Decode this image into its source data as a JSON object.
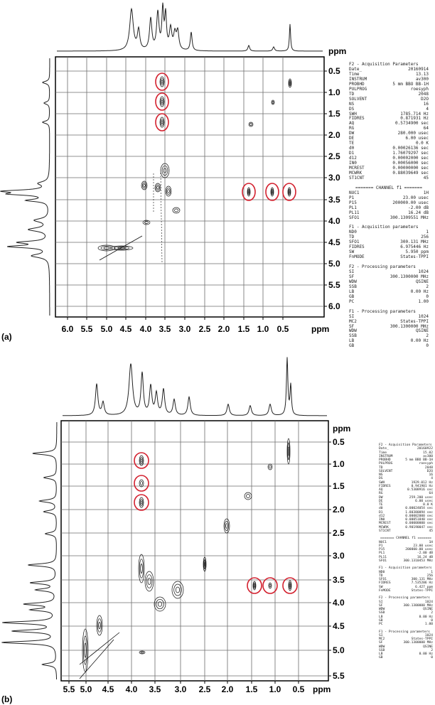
{
  "panels": [
    {
      "label": "(a)",
      "xaxis": {
        "ticks": [
          "6.0",
          "5.5",
          "5.0",
          "4.5",
          "4.0",
          "3.5",
          "3.0",
          "2.5",
          "2.0",
          "1.5",
          "1.0",
          "0.5"
        ],
        "unit": "ppm"
      },
      "yaxis": {
        "ticks": [
          "0.5",
          "1.0",
          "1.5",
          "2.0",
          "2.5",
          "3.0",
          "3.5",
          "4.0",
          "4.5",
          "5.0",
          "5.5",
          "6.0"
        ],
        "unit": "ppm"
      },
      "params": [
        {
          "t": "h",
          "text": "F2 - Acquisition Parameters"
        },
        {
          "k": "Date_",
          "v": "20160914"
        },
        {
          "k": "Time",
          "v": "13.13"
        },
        {
          "k": "INSTRUM",
          "v": "av300"
        },
        {
          "k": "PROBHD",
          "v": "5 mm BBO BB-1H"
        },
        {
          "k": "PULPROG",
          "v": "roesyph"
        },
        {
          "k": "TD",
          "v": "2048"
        },
        {
          "k": "SOLVENT",
          "v": "D2O"
        },
        {
          "k": "NS",
          "v": "16"
        },
        {
          "k": "DS",
          "v": "4"
        },
        {
          "k": "SWH",
          "v": "1785.714 Hz"
        },
        {
          "k": "FIDRES",
          "v": "0.871931 Hz"
        },
        {
          "k": "AQ",
          "v": "0.5734900 sec"
        },
        {
          "k": "RG",
          "v": "64"
        },
        {
          "k": "DW",
          "v": "280.000 usec"
        },
        {
          "k": "DE",
          "v": "6.00 usec"
        },
        {
          "k": "TE",
          "v": "0.0 K"
        },
        {
          "k": "d0",
          "v": "0.00026136 sec"
        },
        {
          "k": "D1",
          "v": "1.76079297 sec"
        },
        {
          "k": "d12",
          "v": "0.00002000 sec"
        },
        {
          "k": "IN0",
          "v": "0.00056000 sec"
        },
        {
          "k": "MCREST",
          "v": "0.00000000 sec"
        },
        {
          "k": "MCWRK",
          "v": "0.88039649 sec"
        },
        {
          "k": "ST1CNT",
          "v": "45"
        },
        {
          "t": "s"
        },
        {
          "t": "c",
          "text": "======= CHANNEL f1 ======="
        },
        {
          "k": "NUC1",
          "v": "1H"
        },
        {
          "k": "P1",
          "v": "23.00 usec"
        },
        {
          "k": "P15",
          "v": "200000.00 usec"
        },
        {
          "k": "PL1",
          "v": "-2.00 dB"
        },
        {
          "k": "PL11",
          "v": "16.24 dB"
        },
        {
          "k": "SFO1",
          "v": "300.1309551 MHz"
        },
        {
          "t": "s"
        },
        {
          "t": "h",
          "text": "F1 - Acquisition parameters"
        },
        {
          "k": "ND0",
          "v": "1"
        },
        {
          "k": "TD",
          "v": "256"
        },
        {
          "k": "SFO1",
          "v": "300.131 MHz"
        },
        {
          "k": "FIDRES",
          "v": "6.975446 Hz"
        },
        {
          "k": "SW",
          "v": "5.950 ppm"
        },
        {
          "k": "FnMODE",
          "v": "States-TPPI"
        },
        {
          "t": "s"
        },
        {
          "t": "h",
          "text": "F2 - Processing parameters"
        },
        {
          "k": "SI",
          "v": "1024"
        },
        {
          "k": "SF",
          "v": "300.1300000 MHz"
        },
        {
          "k": "WDW",
          "v": "QSINE"
        },
        {
          "k": "SSB",
          "v": "2"
        },
        {
          "k": "LB",
          "v": "0.00 Hz"
        },
        {
          "k": "GB",
          "v": "0"
        },
        {
          "k": "PC",
          "v": "1.00"
        },
        {
          "t": "s"
        },
        {
          "t": "h",
          "text": "F1 - Processing parameters"
        },
        {
          "k": "SI",
          "v": "1024"
        },
        {
          "k": "MC2",
          "v": "States-TPPI"
        },
        {
          "k": "SF",
          "v": "300.1300000 MHz"
        },
        {
          "k": "WDW",
          "v": "QSINE"
        },
        {
          "k": "SSB",
          "v": "2"
        },
        {
          "k": "LB",
          "v": "0.00 Hz"
        },
        {
          "k": "GB",
          "v": "0"
        }
      ]
    },
    {
      "label": "(b)",
      "xaxis": {
        "ticks": [
          "5.5",
          "5.0",
          "4.5",
          "4.0",
          "3.5",
          "3.0",
          "2.5",
          "2.0",
          "1.5",
          "1.0",
          "0.5"
        ],
        "unit": "ppm"
      },
      "yaxis": {
        "ticks": [
          "0.5",
          "1.0",
          "1.5",
          "2.0",
          "2.5",
          "3.0",
          "3.5",
          "4.0",
          "4.5",
          "5.0",
          "5.5"
        ],
        "unit": "ppm"
      },
      "params": [
        {
          "t": "h",
          "text": "F2 - Acquisition Parameters"
        },
        {
          "k": "Date_",
          "v": "20160922"
        },
        {
          "k": "Time",
          "v": "15.02"
        },
        {
          "k": "INSTRUM",
          "v": "av300"
        },
        {
          "k": "PROBHD",
          "v": "5 mm BBO BB-1H"
        },
        {
          "k": "PULPROG",
          "v": "roesyph"
        },
        {
          "k": "TD",
          "v": "2048"
        },
        {
          "k": "SOLVENT",
          "v": "D2O"
        },
        {
          "k": "NS",
          "v": "16"
        },
        {
          "k": "DS",
          "v": "4"
        },
        {
          "k": "SWH",
          "v": "1929.012 Hz"
        },
        {
          "k": "FIDRES",
          "v": "0.941901 Hz"
        },
        {
          "k": "AQ",
          "v": "0.5308916 sec"
        },
        {
          "k": "RG",
          "v": "64"
        },
        {
          "k": "DW",
          "v": "259.200 usec"
        },
        {
          "k": "DE",
          "v": "6.00 usec"
        },
        {
          "k": "TE",
          "v": "0.0 K"
        },
        {
          "k": "d0",
          "v": "0.00024054 sec"
        },
        {
          "k": "D1",
          "v": "1.80380094 sec"
        },
        {
          "k": "d12",
          "v": "0.00002000 sec"
        },
        {
          "k": "IN0",
          "v": "0.00051840 sec"
        },
        {
          "k": "MCREST",
          "v": "0.00000000 sec"
        },
        {
          "k": "MCWRK",
          "v": "0.90190047 sec"
        },
        {
          "k": "ST1CNT",
          "v": "45"
        },
        {
          "t": "s"
        },
        {
          "t": "c",
          "text": "======= CHANNEL f1 ======="
        },
        {
          "k": "NUC1",
          "v": "1H"
        },
        {
          "k": "P1",
          "v": "23.00 usec"
        },
        {
          "k": "P15",
          "v": "200000.00 usec"
        },
        {
          "k": "PL1",
          "v": "-2.00 dB"
        },
        {
          "k": "PL11",
          "v": "16.24 dB"
        },
        {
          "k": "SFO1",
          "v": "300.1310453 MHz"
        },
        {
          "t": "s"
        },
        {
          "t": "h",
          "text": "F1 - Acquisition parameters"
        },
        {
          "k": "ND0",
          "v": "1"
        },
        {
          "k": "TD",
          "v": "256"
        },
        {
          "k": "SFO1",
          "v": "300.131 MHz"
        },
        {
          "k": "FIDRES",
          "v": "7.535206 Hz"
        },
        {
          "k": "SW",
          "v": "6.427 ppm"
        },
        {
          "k": "FnMODE",
          "v": "States-TPPI"
        },
        {
          "t": "s"
        },
        {
          "t": "h",
          "text": "F2 - Processing parameters"
        },
        {
          "k": "SI",
          "v": "1024"
        },
        {
          "k": "SF",
          "v": "300.1300000 MHz"
        },
        {
          "k": "WDW",
          "v": "QSINE"
        },
        {
          "k": "SSB",
          "v": "2"
        },
        {
          "k": "LB",
          "v": "0.00 Hz"
        },
        {
          "k": "GB",
          "v": "0"
        },
        {
          "k": "PC",
          "v": "1.00"
        },
        {
          "t": "s"
        },
        {
          "t": "h",
          "text": "F1 - Processing parameters"
        },
        {
          "k": "SI",
          "v": "1024"
        },
        {
          "k": "MC2",
          "v": "States-TPPI"
        },
        {
          "k": "SF",
          "v": "300.1300000 MHz"
        },
        {
          "k": "WDW",
          "v": "QSINE"
        },
        {
          "k": "SSB",
          "v": "2"
        },
        {
          "k": "LB",
          "v": "0.00 Hz"
        },
        {
          "k": "GB",
          "v": "0"
        }
      ]
    }
  ]
}
